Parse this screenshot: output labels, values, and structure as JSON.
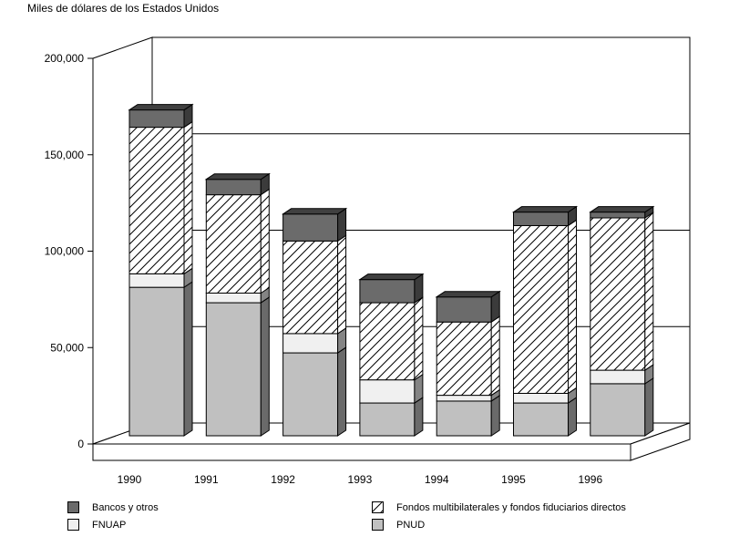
{
  "chart_data": {
    "type": "bar",
    "stacked": true,
    "three_d": true,
    "title": "",
    "ylabel": "Miles de dólares de los Estados Unidos",
    "xlabel": "",
    "ylim": [
      0,
      200000
    ],
    "yticks": [
      "0",
      "50,000",
      "100,000",
      "150,000",
      "200,000"
    ],
    "ytick_values": [
      0,
      50000,
      100000,
      150000,
      200000
    ],
    "categories": [
      "1990",
      "1991",
      "1992",
      "1993",
      "1994",
      "1995",
      "1996"
    ],
    "series": [
      {
        "name": "PNUD",
        "values": [
          77000,
          69000,
          43000,
          17000,
          18000,
          17000,
          27000
        ],
        "color": "#c0c0c0",
        "pattern": "solid"
      },
      {
        "name": "FNUAP",
        "values": [
          7000,
          5000,
          10000,
          12000,
          3000,
          5000,
          7000
        ],
        "color": "#f0f0f0",
        "pattern": "solid"
      },
      {
        "name": "Fondos multibilaterales y fondos fiduciarios directos",
        "values": [
          76000,
          51000,
          48000,
          40000,
          38000,
          87000,
          79000
        ],
        "color": "#ffffff",
        "pattern": "hatch"
      },
      {
        "name": "Bancos y otros",
        "values": [
          9000,
          8000,
          14000,
          12000,
          13000,
          7000,
          3000
        ],
        "color": "#6b6b6b",
        "pattern": "solid"
      }
    ],
    "grid": true,
    "legend_position": "bottom"
  },
  "legend": [
    {
      "label": "Bancos y otros",
      "color": "#6b6b6b",
      "pattern": "solid"
    },
    {
      "label": "Fondos multibilaterales y fondos fiduciarios directos",
      "color": "#ffffff",
      "pattern": "hatch"
    },
    {
      "label": "FNUAP",
      "color": "#f0f0f0",
      "pattern": "solid"
    },
    {
      "label": "PNUD",
      "color": "#c0c0c0",
      "pattern": "solid"
    }
  ]
}
